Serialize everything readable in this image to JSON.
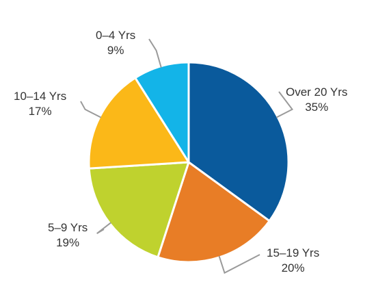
{
  "chart_data": {
    "type": "pie",
    "title": "",
    "slices": [
      {
        "label": "Over 20 Yrs",
        "value": 35,
        "value_label": "35%",
        "color": "#0a5a9c"
      },
      {
        "label": "15–19 Yrs",
        "value": 20,
        "value_label": "20%",
        "color": "#e87d26"
      },
      {
        "label": "5–9 Yrs",
        "value": 19,
        "value_label": "19%",
        "color": "#bfd22e"
      },
      {
        "label": "10–14 Yrs",
        "value": 17,
        "value_label": "17%",
        "color": "#fbb818"
      },
      {
        "label": "0–4 Yrs",
        "value": 9,
        "value_label": "9%",
        "color": "#13b4e8"
      }
    ],
    "start": "12 o'clock",
    "direction": "clockwise",
    "legend": "none",
    "labels": "outside with leader lines"
  }
}
